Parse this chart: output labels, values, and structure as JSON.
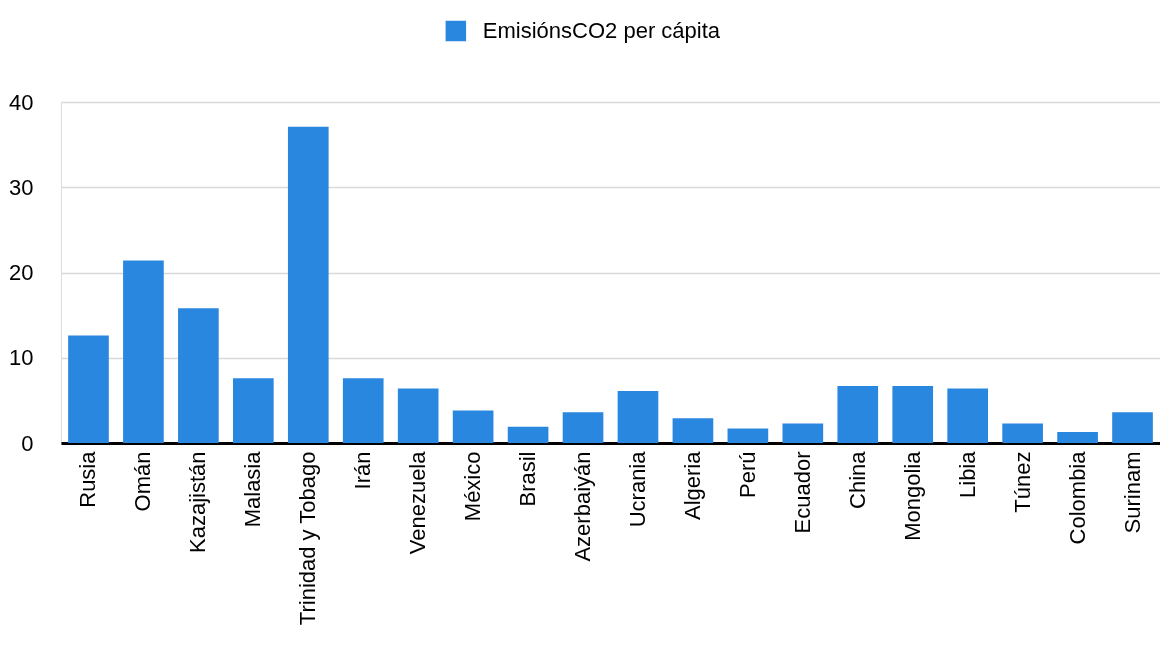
{
  "chart_data": {
    "type": "bar",
    "categories": [
      "Rusia",
      "Omán",
      "Kazajistán",
      "Malasia",
      "Trinidad y Tobago",
      "Irán",
      "Venezuela",
      "México",
      "Brasil",
      "Azerbaiyán",
      "Ucrania",
      "Algeria",
      "Perú",
      "Ecuador",
      "China",
      "Mongolia",
      "Libia",
      "Túnez",
      "Colombia",
      "Surinam"
    ],
    "series": [
      {
        "name": "EmisiónsCO2 per cápita",
        "color": "#2a87e0",
        "values": [
          12.6,
          21.4,
          15.8,
          7.6,
          37.1,
          7.6,
          6.4,
          3.8,
          1.9,
          3.6,
          6.1,
          2.9,
          1.7,
          2.3,
          6.7,
          6.7,
          6.4,
          2.3,
          1.3,
          3.6
        ]
      }
    ],
    "ylim": [
      0,
      40
    ],
    "yticks": [
      0,
      10,
      20,
      30,
      40
    ],
    "grid": "y",
    "legend": "top"
  }
}
